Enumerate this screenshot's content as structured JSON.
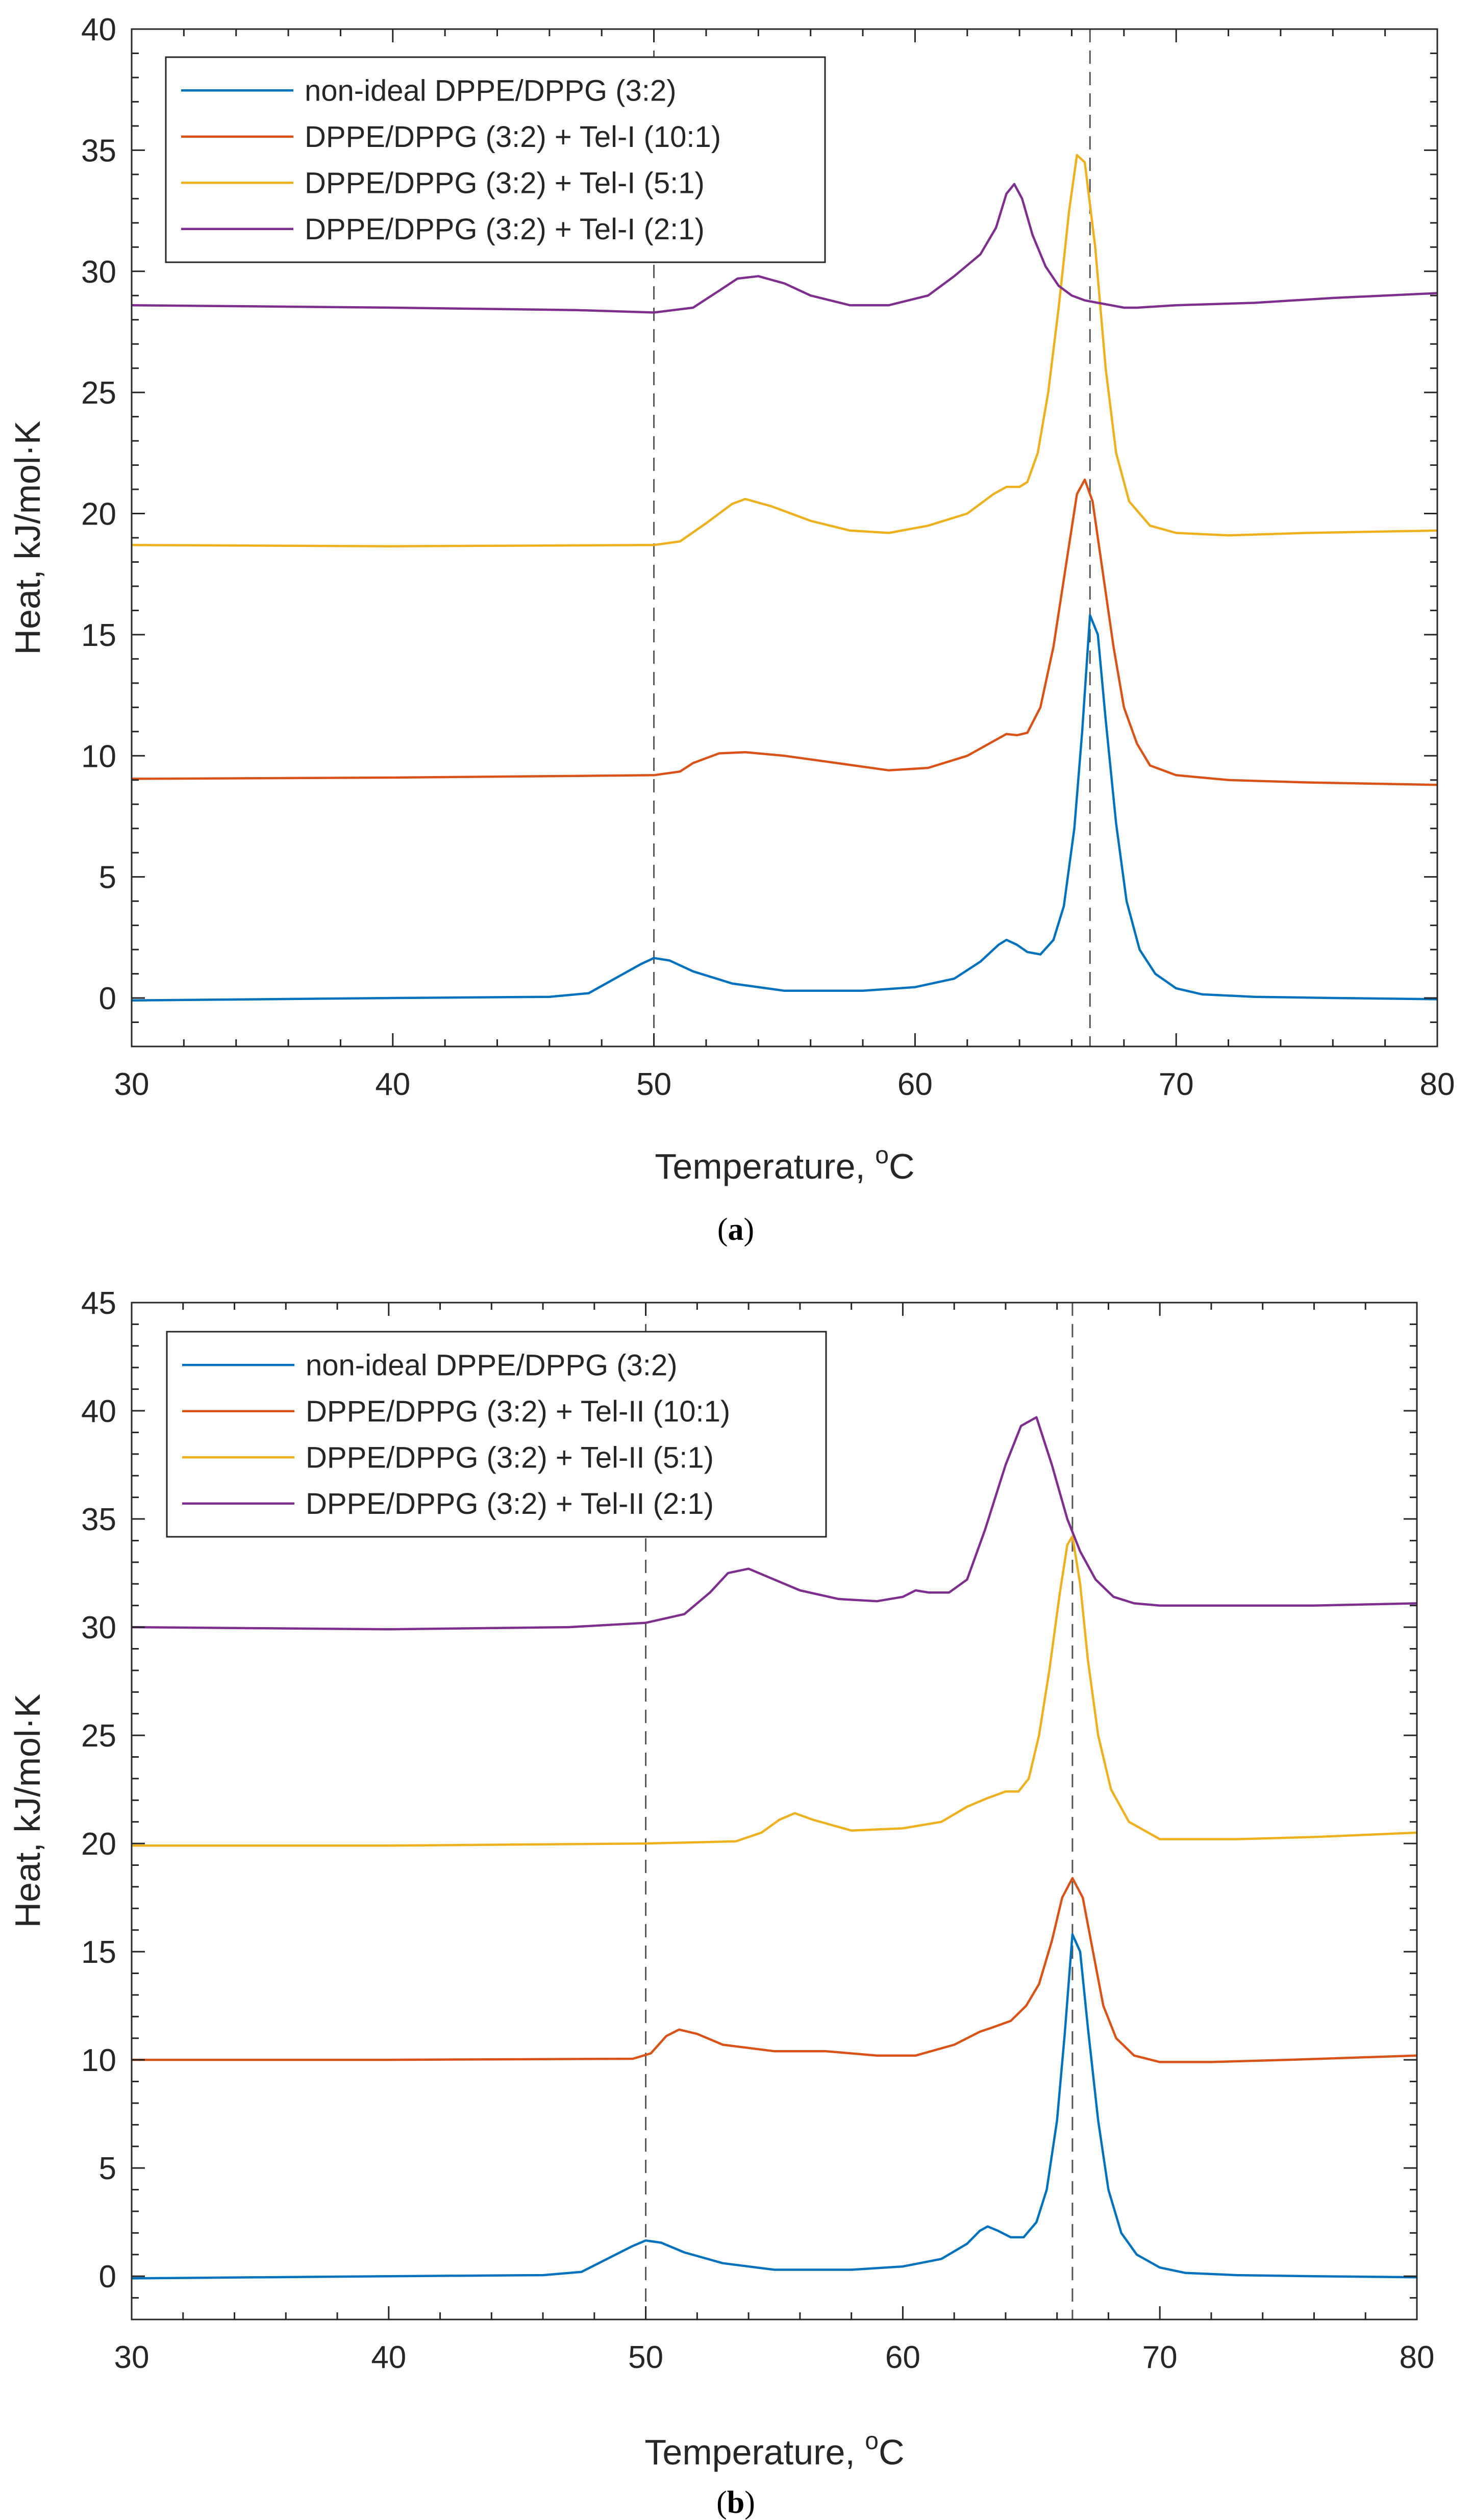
{
  "chart_data": [
    {
      "panel": "a",
      "type": "line",
      "caption_open": "(",
      "caption_letter": "a",
      "caption_close": ")",
      "xlabel": "Temperature, ",
      "xlabel_unit_sup": "o",
      "xlabel_unit": "C",
      "ylabel": "Heat, kJ/mol·K",
      "xlim": [
        30,
        80
      ],
      "ylim": [
        -2,
        40
      ],
      "xticks": [
        30,
        40,
        50,
        60,
        70,
        80
      ],
      "yticks": [
        0,
        5,
        10,
        15,
        20,
        25,
        30,
        35,
        40
      ],
      "vlines": [
        50,
        66.7
      ],
      "legend_position": "top-left",
      "series": [
        {
          "name": "non-ideal DPPE/DPPG (3:2)",
          "color": "#0072BD",
          "x": [
            30,
            40,
            46,
            47.5,
            48.5,
            49.5,
            50,
            50.6,
            51.5,
            53,
            55,
            58,
            60,
            61.5,
            62.5,
            63.2,
            63.5,
            63.9,
            64.3,
            64.8,
            65.3,
            65.7,
            66.1,
            66.4,
            66.7,
            67.0,
            67.3,
            67.7,
            68.1,
            68.6,
            69.2,
            70,
            71,
            73,
            76,
            80
          ],
          "y": [
            -0.1,
            0,
            0.05,
            0.2,
            0.8,
            1.4,
            1.65,
            1.55,
            1.1,
            0.6,
            0.3,
            0.3,
            0.45,
            0.8,
            1.5,
            2.2,
            2.4,
            2.2,
            1.9,
            1.8,
            2.4,
            3.8,
            7,
            11,
            15.8,
            15,
            11.5,
            7.2,
            4,
            2,
            1,
            0.4,
            0.15,
            0.05,
            0,
            -0.05
          ]
        },
        {
          "name": "DPPE/DPPG (3:2) + Tel-I (10:1)",
          "color": "#D95319",
          "x": [
            30,
            40,
            50,
            51,
            51.5,
            52.5,
            53.5,
            55,
            57,
            59,
            60.5,
            62,
            63,
            63.5,
            63.9,
            64.3,
            64.8,
            65.3,
            65.8,
            66.2,
            66.5,
            66.8,
            67.2,
            67.6,
            68,
            68.5,
            69,
            70,
            72,
            75,
            80
          ],
          "y": [
            9.05,
            9.1,
            9.2,
            9.35,
            9.7,
            10.1,
            10.15,
            10,
            9.7,
            9.4,
            9.5,
            10,
            10.6,
            10.9,
            10.85,
            10.95,
            12,
            14.5,
            18,
            20.8,
            21.4,
            20.5,
            17.5,
            14.5,
            12,
            10.5,
            9.6,
            9.2,
            9,
            8.9,
            8.8
          ]
        },
        {
          "name": "DPPE/DPPG (3:2) + Tel-I (5:1)",
          "color": "#EDB120",
          "x": [
            30,
            40,
            50,
            51,
            52,
            53,
            53.5,
            54.5,
            56,
            57.5,
            59,
            60.5,
            62,
            63,
            63.5,
            64,
            64.3,
            64.7,
            65.1,
            65.5,
            65.9,
            66.2,
            66.5,
            66.9,
            67.3,
            67.7,
            68.2,
            69,
            70,
            72,
            75,
            80
          ],
          "y": [
            18.7,
            18.65,
            18.7,
            18.85,
            19.6,
            20.4,
            20.6,
            20.3,
            19.7,
            19.3,
            19.2,
            19.5,
            20,
            20.8,
            21.1,
            21.1,
            21.3,
            22.5,
            25,
            28.5,
            32.5,
            34.8,
            34.5,
            31,
            26,
            22.5,
            20.5,
            19.5,
            19.2,
            19.1,
            19.2,
            19.3
          ]
        },
        {
          "name": "DPPE/DPPG (3:2) + Tel-I (2:1)",
          "color": "#7E2F8E",
          "x": [
            30,
            40,
            47,
            50,
            51.5,
            52.5,
            53.2,
            54,
            55,
            56,
            57.5,
            59,
            60.5,
            61.5,
            62.5,
            63.1,
            63.5,
            63.8,
            64.1,
            64.5,
            65,
            65.5,
            66,
            66.5,
            67,
            67.5,
            68,
            68.5,
            70,
            73,
            76,
            80
          ],
          "y": [
            28.6,
            28.5,
            28.4,
            28.3,
            28.5,
            29.2,
            29.7,
            29.8,
            29.5,
            29.0,
            28.6,
            28.6,
            29.0,
            29.8,
            30.7,
            31.8,
            33.2,
            33.6,
            33,
            31.5,
            30.2,
            29.4,
            29.0,
            28.8,
            28.7,
            28.6,
            28.5,
            28.5,
            28.6,
            28.7,
            28.9,
            29.1
          ]
        }
      ]
    },
    {
      "panel": "b",
      "type": "line",
      "caption_open": "(",
      "caption_letter": "b",
      "caption_close": ")",
      "xlabel": "Temperature, ",
      "xlabel_unit_sup": "o",
      "xlabel_unit": "C",
      "ylabel": "Heat, kJ/mol·K",
      "xlim": [
        30,
        80
      ],
      "ylim": [
        -2,
        45
      ],
      "xticks": [
        30,
        40,
        50,
        60,
        70,
        80
      ],
      "yticks": [
        0,
        5,
        10,
        15,
        20,
        25,
        30,
        35,
        40,
        45
      ],
      "vlines": [
        50,
        66.6
      ],
      "legend_position": "top-left",
      "series": [
        {
          "name": "non-ideal DPPE/DPPG (3:2)",
          "color": "#0072BD",
          "x": [
            30,
            40,
            46,
            47.5,
            48.5,
            49.5,
            50,
            50.6,
            51.5,
            53,
            55,
            58,
            60,
            61.5,
            62.5,
            63.0,
            63.3,
            63.7,
            64.2,
            64.7,
            65.2,
            65.6,
            66.0,
            66.3,
            66.6,
            66.9,
            67.2,
            67.6,
            68,
            68.5,
            69.1,
            70,
            71,
            73,
            76,
            80
          ],
          "y": [
            -0.1,
            0,
            0.05,
            0.2,
            0.8,
            1.4,
            1.65,
            1.55,
            1.1,
            0.6,
            0.3,
            0.3,
            0.45,
            0.8,
            1.5,
            2.1,
            2.3,
            2.1,
            1.8,
            1.8,
            2.5,
            4,
            7.2,
            11.2,
            15.8,
            15,
            11.5,
            7.2,
            4,
            2,
            1,
            0.4,
            0.15,
            0.05,
            0,
            -0.05
          ]
        },
        {
          "name": "DPPE/DPPG (3:2) + Tel-II (10:1)",
          "color": "#D95319",
          "x": [
            30,
            40,
            49.5,
            50.2,
            50.8,
            51.3,
            52,
            53,
            55,
            57,
            59,
            60.5,
            62,
            63,
            63.5,
            64.2,
            64.8,
            65.3,
            65.8,
            66.2,
            66.6,
            67,
            67.4,
            67.8,
            68.3,
            69,
            70,
            72,
            75,
            80
          ],
          "y": [
            10,
            10,
            10.05,
            10.3,
            11.1,
            11.4,
            11.2,
            10.7,
            10.4,
            10.4,
            10.2,
            10.2,
            10.7,
            11.3,
            11.5,
            11.8,
            12.5,
            13.5,
            15.5,
            17.5,
            18.4,
            17.5,
            15,
            12.5,
            11,
            10.2,
            9.9,
            9.9,
            10,
            10.2
          ]
        },
        {
          "name": "DPPE/DPPG (3:2) + Tel-II (5:1)",
          "color": "#EDB120",
          "x": [
            30,
            40,
            50,
            53.5,
            54.5,
            55.2,
            55.8,
            56.5,
            58,
            60,
            61.5,
            62.5,
            63.3,
            64,
            64.5,
            64.9,
            65.3,
            65.7,
            66.1,
            66.4,
            66.6,
            66.9,
            67.2,
            67.6,
            68.1,
            68.8,
            70,
            73,
            76,
            80
          ],
          "y": [
            19.9,
            19.9,
            20,
            20.1,
            20.5,
            21.1,
            21.4,
            21.1,
            20.6,
            20.7,
            21,
            21.7,
            22.1,
            22.4,
            22.4,
            23,
            25,
            28,
            31.5,
            33.8,
            34.2,
            32,
            28.5,
            25,
            22.5,
            21,
            20.2,
            20.2,
            20.3,
            20.5
          ]
        },
        {
          "name": "DPPE/DPPG (3:2) + Tel-II (2:1)",
          "color": "#7E2F8E",
          "x": [
            30,
            40,
            47,
            50,
            51.5,
            52.5,
            53.2,
            54,
            55,
            56,
            57.5,
            59,
            60,
            60.5,
            61,
            61.8,
            62.5,
            63.2,
            64,
            64.6,
            65.2,
            65.8,
            66.4,
            66.9,
            67.5,
            68.2,
            69,
            70,
            73,
            76,
            80
          ],
          "y": [
            30,
            29.9,
            30,
            30.2,
            30.6,
            31.6,
            32.5,
            32.7,
            32.2,
            31.7,
            31.3,
            31.2,
            31.4,
            31.7,
            31.6,
            31.6,
            32.2,
            34.5,
            37.5,
            39.3,
            39.7,
            37.5,
            35,
            33.5,
            32.2,
            31.4,
            31.1,
            31,
            31,
            31,
            31.1
          ]
        }
      ]
    }
  ]
}
